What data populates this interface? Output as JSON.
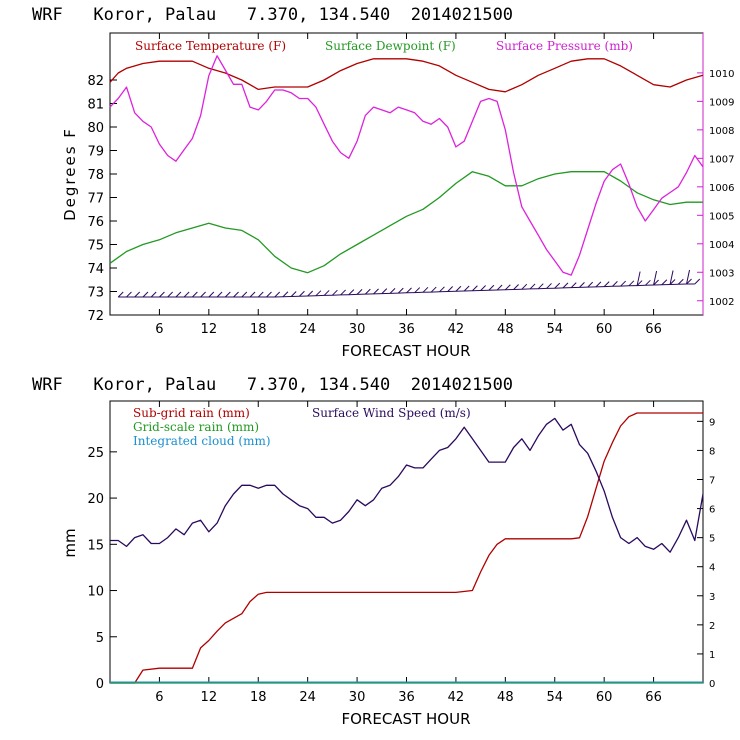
{
  "chart_data": [
    {
      "type": "line",
      "title": "WRF   Koror, Palau   7.370, 134.540  2014021500",
      "xlabel": "FORECAST HOUR",
      "ylabel": "Degrees F",
      "xlim": [
        0,
        72
      ],
      "ylim": [
        72,
        84
      ],
      "y2lim": [
        1001.5,
        1011.4
      ],
      "x_ticks": [
        6,
        12,
        18,
        24,
        30,
        36,
        42,
        48,
        54,
        60,
        66
      ],
      "x_tick_labels": [
        "6",
        "12",
        "18",
        "24",
        "30",
        "36",
        "42",
        "48",
        "54",
        "60",
        "66"
      ],
      "y_ticks": [
        72,
        73,
        74,
        75,
        76,
        77,
        78,
        79,
        80,
        81,
        82
      ],
      "y_tick_labels": [
        "72",
        "73",
        "74",
        "75",
        "76",
        "77",
        "78",
        "79",
        "80",
        "81",
        "82"
      ],
      "y2_ticks": [
        1002,
        1003,
        1004,
        1005,
        1006,
        1007,
        1008,
        1009,
        1010
      ],
      "y2_tick_labels": [
        "1002",
        "1003",
        "1004",
        "1005",
        "1006",
        "1007",
        "1008",
        "1009",
        "1010"
      ],
      "legend": [
        "Surface Temperature (F)",
        "Surface Dewpoint (F)",
        "Surface Pressure (mb)"
      ],
      "series": [
        {
          "name": "Surface Temperature (F)",
          "color": "#b00000",
          "axis": "left",
          "x": [
            0,
            1,
            2,
            4,
            6,
            8,
            10,
            12,
            14,
            16,
            18,
            20,
            22,
            24,
            26,
            28,
            30,
            32,
            34,
            36,
            38,
            40,
            42,
            44,
            46,
            48,
            50,
            52,
            54,
            56,
            58,
            60,
            62,
            64,
            66,
            68,
            70,
            72
          ],
          "values": [
            81.9,
            82.3,
            82.5,
            82.7,
            82.8,
            82.8,
            82.8,
            82.5,
            82.3,
            82.0,
            81.6,
            81.7,
            81.7,
            81.7,
            82.0,
            82.4,
            82.7,
            82.9,
            82.9,
            82.9,
            82.8,
            82.6,
            82.2,
            81.9,
            81.6,
            81.5,
            81.8,
            82.2,
            82.5,
            82.8,
            82.9,
            82.9,
            82.6,
            82.2,
            81.8,
            81.7,
            82.0,
            82.2
          ]
        },
        {
          "name": "Surface Dewpoint (F)",
          "color": "#229922",
          "axis": "left",
          "x": [
            0,
            2,
            4,
            6,
            8,
            10,
            12,
            14,
            16,
            18,
            20,
            22,
            24,
            26,
            28,
            30,
            32,
            34,
            36,
            38,
            40,
            42,
            44,
            46,
            48,
            50,
            52,
            54,
            56,
            58,
            60,
            62,
            64,
            66,
            68,
            70,
            72
          ],
          "values": [
            74.2,
            74.7,
            75.0,
            75.2,
            75.5,
            75.7,
            75.9,
            75.7,
            75.6,
            75.2,
            74.5,
            74.0,
            73.8,
            74.1,
            74.6,
            75.0,
            75.4,
            75.8,
            76.2,
            76.5,
            77.0,
            77.6,
            78.1,
            77.9,
            77.5,
            77.5,
            77.8,
            78.0,
            78.1,
            78.1,
            78.1,
            77.7,
            77.2,
            76.9,
            76.7,
            76.8,
            76.8
          ]
        },
        {
          "name": "Surface Pressure (mb)",
          "color": "#dd22dd",
          "axis": "right",
          "x": [
            0,
            1,
            2,
            3,
            4,
            5,
            6,
            7,
            8,
            9,
            10,
            11,
            12,
            13,
            14,
            15,
            16,
            17,
            18,
            19,
            20,
            21,
            22,
            23,
            24,
            25,
            26,
            27,
            28,
            29,
            30,
            31,
            32,
            33,
            34,
            35,
            36,
            37,
            38,
            39,
            40,
            41,
            42,
            43,
            44,
            45,
            46,
            47,
            48,
            49,
            50,
            51,
            52,
            53,
            54,
            55,
            56,
            57,
            58,
            59,
            60,
            61,
            62,
            63,
            64,
            65,
            66,
            67,
            68,
            69,
            70,
            71,
            72
          ],
          "values": [
            1008.8,
            1009.1,
            1009.5,
            1008.6,
            1008.3,
            1008.1,
            1007.5,
            1007.1,
            1006.9,
            1007.3,
            1007.7,
            1008.5,
            1009.9,
            1010.6,
            1010.1,
            1009.6,
            1009.6,
            1008.8,
            1008.7,
            1009.0,
            1009.4,
            1009.4,
            1009.3,
            1009.1,
            1009.1,
            1008.8,
            1008.2,
            1007.6,
            1007.2,
            1007.0,
            1007.6,
            1008.5,
            1008.8,
            1008.7,
            1008.6,
            1008.8,
            1008.7,
            1008.6,
            1008.3,
            1008.2,
            1008.4,
            1008.1,
            1007.4,
            1007.6,
            1008.3,
            1009.0,
            1009.1,
            1009.0,
            1008.0,
            1006.5,
            1005.3,
            1004.8,
            1004.3,
            1003.8,
            1003.4,
            1003.0,
            1002.9,
            1003.6,
            1004.5,
            1005.4,
            1006.2,
            1006.6,
            1006.8,
            1006.1,
            1005.3,
            1004.8,
            1005.2,
            1005.6,
            1005.8,
            1006.0,
            1006.5,
            1007.1,
            1006.7
          ]
        }
      ]
    },
    {
      "type": "line",
      "title": "WRF   Koror, Palau   7.370, 134.540  2014021500",
      "xlabel": "FORECAST HOUR",
      "ylabel": "mm",
      "xlim": [
        0,
        72
      ],
      "ylim": [
        0,
        30.5
      ],
      "y2lim": [
        0,
        9.7
      ],
      "x_ticks": [
        6,
        12,
        18,
        24,
        30,
        36,
        42,
        48,
        54,
        60,
        66
      ],
      "x_tick_labels": [
        "6",
        "12",
        "18",
        "24",
        "30",
        "36",
        "42",
        "48",
        "54",
        "60",
        "66"
      ],
      "y_ticks": [
        0,
        5,
        10,
        15,
        20,
        25
      ],
      "y_tick_labels": [
        "0",
        "5",
        "10",
        "15",
        "20",
        "25"
      ],
      "y2_ticks": [
        0,
        1,
        2,
        3,
        4,
        5,
        6,
        7,
        8,
        9
      ],
      "y2_tick_labels": [
        "0",
        "1",
        "2",
        "3",
        "4",
        "5",
        "6",
        "7",
        "8",
        "9"
      ],
      "legend": [
        "Sub-grid rain (mm)",
        "Grid-scale rain (mm)",
        "Integrated cloud (mm)",
        "Surface Wind Speed (m/s)"
      ],
      "series": [
        {
          "name": "Sub-grid rain (mm)",
          "color": "#b00000",
          "axis": "left",
          "x": [
            0,
            2,
            3,
            4,
            6,
            8,
            10,
            11,
            12,
            13,
            14,
            16,
            17,
            18,
            19,
            20,
            22,
            24,
            30,
            36,
            42,
            44,
            45,
            46,
            47,
            48,
            50,
            52,
            54,
            56,
            57,
            58,
            59,
            60,
            61,
            62,
            63,
            64,
            66,
            68,
            70,
            72
          ],
          "values": [
            0,
            0,
            0,
            1.4,
            1.6,
            1.6,
            1.6,
            3.8,
            4.6,
            5.6,
            6.5,
            7.5,
            8.8,
            9.6,
            9.8,
            9.8,
            9.8,
            9.8,
            9.8,
            9.8,
            9.8,
            10.0,
            12.0,
            13.8,
            15.0,
            15.6,
            15.6,
            15.6,
            15.6,
            15.6,
            15.7,
            18.0,
            21.0,
            24.0,
            26.0,
            27.8,
            28.8,
            29.2,
            29.2,
            29.2,
            29.2,
            29.2
          ]
        },
        {
          "name": "Grid-scale rain (mm)",
          "color": "#229922",
          "axis": "left",
          "x": [
            0,
            72
          ],
          "values": [
            0,
            0
          ]
        },
        {
          "name": "Integrated cloud (mm)",
          "color": "#1a8fd0",
          "axis": "left",
          "x": [
            0,
            72
          ],
          "values": [
            0.1,
            0.1
          ]
        },
        {
          "name": "Surface Wind Speed (m/s)",
          "color": "#2a0a5e",
          "axis": "right",
          "x": [
            0,
            1,
            2,
            3,
            4,
            5,
            6,
            7,
            8,
            9,
            10,
            11,
            12,
            13,
            14,
            15,
            16,
            17,
            18,
            19,
            20,
            21,
            22,
            23,
            24,
            25,
            26,
            27,
            28,
            29,
            30,
            31,
            32,
            33,
            34,
            35,
            36,
            37,
            38,
            39,
            40,
            41,
            42,
            43,
            44,
            45,
            46,
            47,
            48,
            49,
            50,
            51,
            52,
            53,
            54,
            55,
            56,
            57,
            58,
            59,
            60,
            61,
            62,
            63,
            64,
            65,
            66,
            67,
            68,
            69,
            70,
            71,
            72
          ],
          "values": [
            4.9,
            4.9,
            4.7,
            5.0,
            5.1,
            4.8,
            4.8,
            5.0,
            5.3,
            5.1,
            5.5,
            5.6,
            5.2,
            5.5,
            6.1,
            6.5,
            6.8,
            6.8,
            6.7,
            6.8,
            6.8,
            6.5,
            6.3,
            6.1,
            6.0,
            5.7,
            5.7,
            5.5,
            5.6,
            5.9,
            6.3,
            6.1,
            6.3,
            6.7,
            6.8,
            7.1,
            7.5,
            7.4,
            7.4,
            7.7,
            8.0,
            8.1,
            8.4,
            8.8,
            8.4,
            8.0,
            7.6,
            7.6,
            7.6,
            8.1,
            8.4,
            8.0,
            8.5,
            8.9,
            9.1,
            8.7,
            8.9,
            8.2,
            7.9,
            7.3,
            6.6,
            5.7,
            5.0,
            4.8,
            5.0,
            4.7,
            4.6,
            4.8,
            4.5,
            5.0,
            5.6,
            4.9,
            6.5
          ]
        }
      ]
    }
  ]
}
